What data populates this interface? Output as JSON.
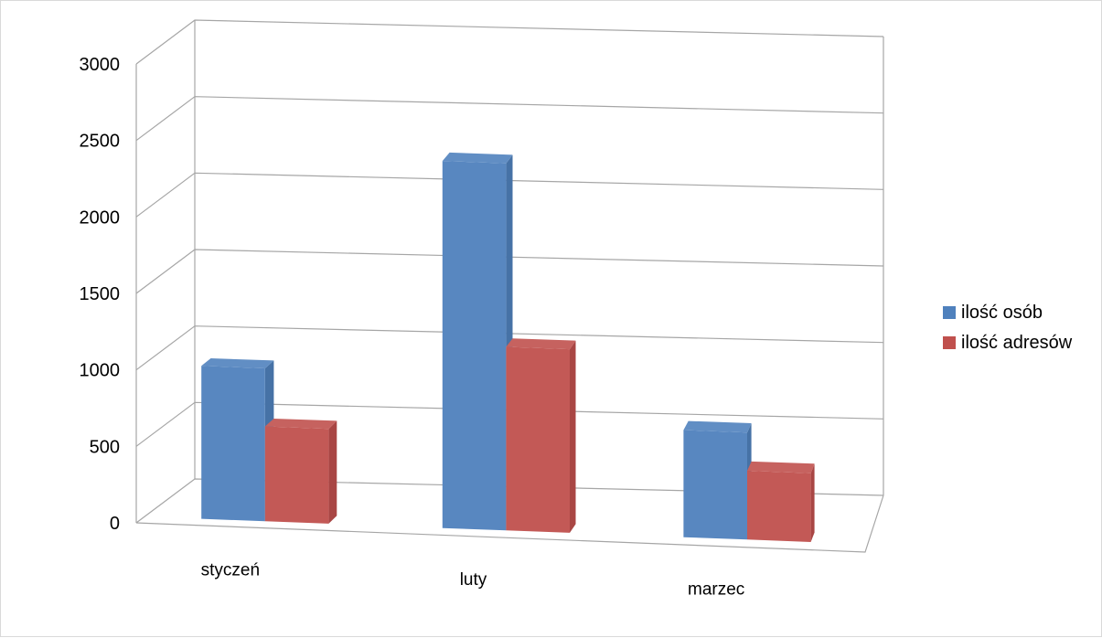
{
  "chart_data": {
    "type": "bar",
    "title": "",
    "xlabel": "",
    "ylabel": "",
    "categories": [
      "styczeń",
      "luty",
      "marzec"
    ],
    "series": [
      {
        "name": "ilość osób",
        "values": [
          1000,
          2400,
          700
        ],
        "color": "#4f81bd"
      },
      {
        "name": "ilość adresów",
        "values": [
          620,
          1200,
          450
        ],
        "color": "#c0504d"
      }
    ],
    "yticks": [
      "0",
      "500",
      "1000",
      "1500",
      "2000",
      "2500",
      "3000"
    ],
    "ylim": [
      0,
      3000
    ],
    "grid": true,
    "legend": "right",
    "style": "3d-clustered-column"
  }
}
